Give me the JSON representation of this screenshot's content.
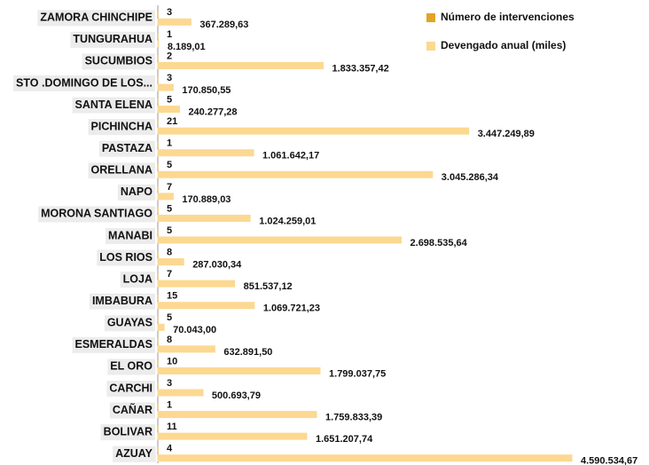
{
  "chart_data": {
    "type": "hbar",
    "categories": [
      "ZAMORA CHINCHIPE",
      "TUNGURAHUA",
      "SUCUMBIOS",
      "STO .DOMINGO DE LOS...",
      "SANTA ELENA",
      "PICHINCHA",
      "PASTAZA",
      "ORELLANA",
      "NAPO",
      "MORONA SANTIAGO",
      "MANABI",
      "LOS RIOS",
      "LOJA",
      "IMBABURA",
      "GUAYAS",
      "ESMERALDAS",
      "EL ORO",
      "CARCHI",
      "CAÑAR",
      "BOLIVAR",
      "AZUAY"
    ],
    "series": [
      {
        "name": "Número de intervenciones",
        "color": "#e0a526",
        "values": [
          3,
          1,
          2,
          3,
          5,
          21,
          1,
          5,
          7,
          5,
          5,
          8,
          7,
          15,
          5,
          8,
          10,
          3,
          1,
          11,
          4
        ]
      },
      {
        "name": "Devengado anual (miles)",
        "color": "#fcd891",
        "values": [
          367289.63,
          8189.01,
          1833357.42,
          170850.55,
          240277.28,
          3447249.89,
          1061642.17,
          3045286.34,
          170889.03,
          1024259.01,
          2698535.64,
          287030.34,
          851537.12,
          1069721.23,
          70043.0,
          632891.5,
          1799037.75,
          500693.79,
          1759833.39,
          1651207.74,
          4590534.67
        ],
        "value_labels": [
          "367.289,63",
          "8.189,01",
          "1.833.357,42",
          "170.850,55",
          "240.277,28",
          "3.447.249,89",
          "1.061.642,17",
          "3.045.286,34",
          "170.889,03",
          "1.024.259,01",
          "2.698.535,64",
          "287.030,34",
          "851.537,12",
          "1.069.721,23",
          "70.043,00",
          "632.891,50",
          "1.799.037,75",
          "500.693,79",
          "1.759.833,39",
          "1.651.207,74",
          "4.590.534,67"
        ]
      }
    ],
    "legend": "top-right"
  }
}
